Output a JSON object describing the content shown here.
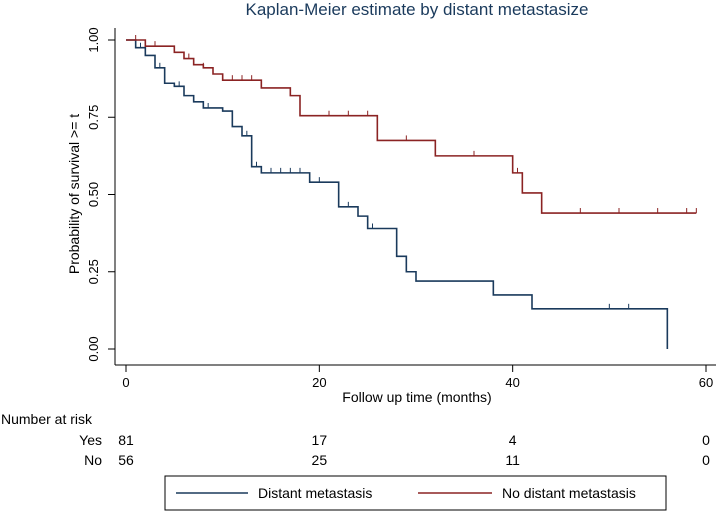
{
  "chart_data": {
    "type": "line",
    "subtype": "kaplan-meier",
    "title": "Kaplan-Meier estimate by distant metastasize",
    "xlabel": "Follow up time (months)",
    "ylabel": "Probability of survival >= t",
    "xlim": [
      0,
      60
    ],
    "ylim": [
      0,
      1
    ],
    "x_ticks": [
      0,
      20,
      40,
      60
    ],
    "x_tick_labels": [
      "0",
      "20",
      "40",
      "60"
    ],
    "y_ticks": [
      0,
      0.25,
      0.5,
      0.75,
      1.0
    ],
    "y_tick_labels": [
      "0.00",
      "0.25",
      "0.50",
      "0.75",
      "1.00"
    ],
    "grid": false,
    "series": [
      {
        "name": "Distant metastasis",
        "color": "#1a3a5c",
        "steps": [
          [
            0,
            1.0
          ],
          [
            1,
            0.975
          ],
          [
            2,
            0.95
          ],
          [
            3,
            0.91
          ],
          [
            4,
            0.86
          ],
          [
            5,
            0.85
          ],
          [
            6,
            0.82
          ],
          [
            7,
            0.8
          ],
          [
            8,
            0.78
          ],
          [
            10,
            0.77
          ],
          [
            11,
            0.72
          ],
          [
            12,
            0.69
          ],
          [
            13,
            0.59
          ],
          [
            14,
            0.57
          ],
          [
            19,
            0.54
          ],
          [
            22,
            0.46
          ],
          [
            24,
            0.43
          ],
          [
            25,
            0.39
          ],
          [
            28,
            0.3
          ],
          [
            29,
            0.25
          ],
          [
            30,
            0.22
          ],
          [
            38,
            0.175
          ],
          [
            42,
            0.13
          ],
          [
            56,
            0.0
          ]
        ],
        "end_x": 56,
        "censor_x": [
          1.5,
          3.5,
          5.5,
          8.5,
          11,
          12.5,
          13.5,
          15,
          16,
          17,
          18,
          20,
          23,
          25.5,
          50,
          52
        ]
      },
      {
        "name": "No distant metastasis",
        "color": "#8b2323",
        "steps": [
          [
            0,
            1.0
          ],
          [
            2,
            0.98
          ],
          [
            5,
            0.96
          ],
          [
            6,
            0.94
          ],
          [
            7,
            0.92
          ],
          [
            8,
            0.91
          ],
          [
            9,
            0.89
          ],
          [
            10,
            0.87
          ],
          [
            14,
            0.845
          ],
          [
            17,
            0.82
          ],
          [
            18,
            0.755
          ],
          [
            26,
            0.675
          ],
          [
            32,
            0.625
          ],
          [
            40,
            0.57
          ],
          [
            41,
            0.505
          ],
          [
            43,
            0.44
          ]
        ],
        "end_x": 59,
        "censor_x": [
          1,
          3,
          6.5,
          8,
          11,
          12,
          13,
          14,
          21,
          23,
          25,
          29,
          36,
          40.5,
          47,
          51,
          55,
          58,
          59
        ]
      }
    ],
    "risk_table": {
      "title": "Number at risk",
      "rows": [
        {
          "label": "Yes",
          "values": [
            "81",
            "17",
            "4",
            "0"
          ]
        },
        {
          "label": "No",
          "values": [
            "56",
            "25",
            "11",
            "0"
          ]
        }
      ],
      "at_x": [
        0,
        20,
        40,
        60
      ]
    },
    "legend": {
      "position": "bottom",
      "entries": [
        "Distant metastasis",
        "No distant metastasis"
      ]
    }
  }
}
